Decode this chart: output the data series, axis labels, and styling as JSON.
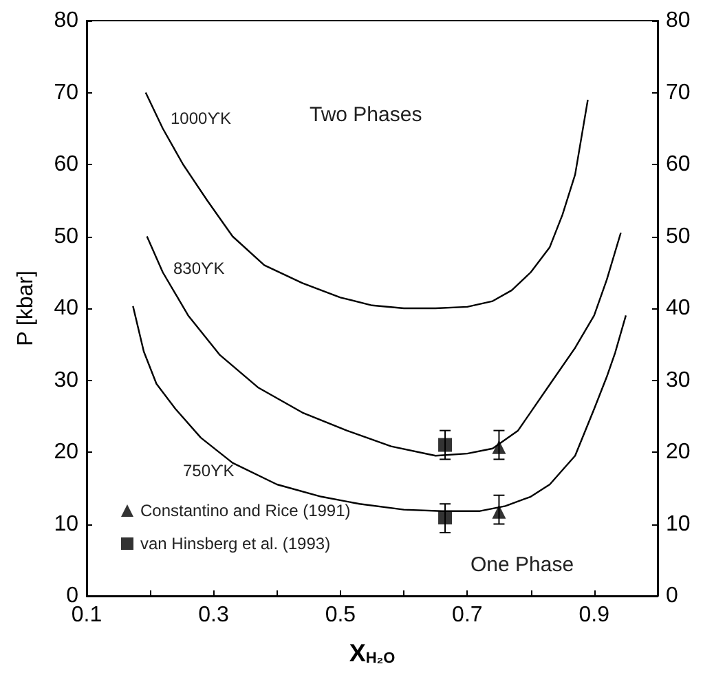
{
  "chart_data": {
    "type": "line",
    "xlabel": "X$_{H₂O}$",
    "ylabel": "P [kbar]",
    "xlim": [
      0.1,
      1.0
    ],
    "xticks": [
      0.1,
      {
        "value": 0.2,
        "label": null
      },
      0.3,
      {
        "value": 0.4,
        "label": null
      },
      0.5,
      {
        "value": 0.6,
        "label": null
      },
      0.7,
      {
        "value": 0.8,
        "label": null
      },
      0.9
    ],
    "ylim": [
      0,
      80
    ],
    "yticks": [
      0,
      10,
      20,
      30,
      40,
      50,
      60,
      70,
      80
    ],
    "y2lim": [
      0,
      80
    ],
    "y2ticks": [
      0,
      10,
      20,
      30,
      40,
      50,
      60,
      70,
      80
    ],
    "grid": false,
    "legend": "bottom left",
    "marker": "none",
    "line_style": "solid",
    "series": [
      {
        "color": "#000000",
        "x": [
          0.193,
          0.22,
          0.252,
          0.29,
          0.33,
          0.38,
          0.44,
          0.5,
          0.55,
          0.6,
          0.65,
          0.7,
          0.74,
          0.77,
          0.8,
          0.83,
          0.85,
          0.87,
          0.89
        ],
        "values": [
          70,
          65,
          60,
          55,
          50,
          46,
          43.5,
          41.5,
          40.4,
          40,
          40,
          40.2,
          41,
          42.5,
          45,
          48.5,
          53,
          58.6,
          69
        ]
      },
      {
        "color": "#000000",
        "x": [
          0.195,
          0.22,
          0.26,
          0.31,
          0.37,
          0.44,
          0.51,
          0.58,
          0.65,
          0.7,
          0.74,
          0.78,
          0.83,
          0.87,
          0.9,
          0.92,
          0.942
        ],
        "values": [
          50,
          45,
          39,
          33.5,
          29,
          25.5,
          23,
          20.8,
          19.5,
          19.8,
          20.5,
          23,
          29.4,
          34.5,
          39,
          44,
          50.5
        ]
      },
      {
        "color": "#000000",
        "x": [
          0.173,
          0.19,
          0.21,
          0.24,
          0.28,
          0.33,
          0.4,
          0.47,
          0.53,
          0.6,
          0.66,
          0.72,
          0.76,
          0.8,
          0.83,
          0.87,
          0.9,
          0.92,
          0.933,
          0.95
        ],
        "values": [
          40.3,
          34,
          29.5,
          26,
          22,
          18.5,
          15.5,
          13.8,
          12.8,
          12,
          11.8,
          11.8,
          12.5,
          13.8,
          15.5,
          19.5,
          26,
          30.5,
          33.8,
          39
        ]
      },
      {
        "type": "scatter",
        "name": "Constantino and Rice (1991)",
        "color": "#000000",
        "marker": "triangle",
        "x": [
          0.75,
          0.75
        ],
        "values": [
          20.7,
          11.7
        ],
        "errors": [
          [
            19,
            23
          ],
          [
            10,
            14
          ]
        ]
      },
      {
        "type": "scatter",
        "name": "van Hinsberg et al. (1993)",
        "color": "#000000",
        "marker": "square",
        "x": [
          0.665,
          0.665
        ],
        "values": [
          21,
          10.9
        ],
        "errors": [
          [
            19,
            23
          ],
          [
            8.8,
            12.8
          ]
        ]
      }
    ],
    "annotations": [
      "1000ϒK",
      "830ϒK",
      "750ϒK",
      "Two Phases",
      "One Phase"
    ]
  }
}
